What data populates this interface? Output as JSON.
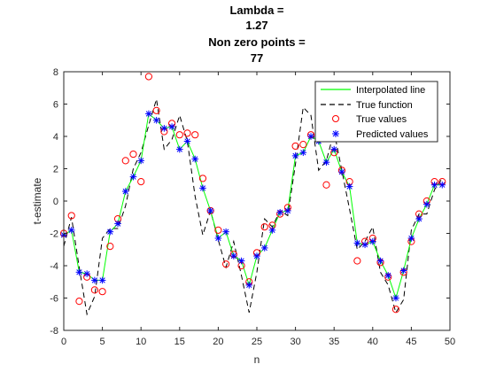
{
  "chart_data": {
    "type": "line",
    "title_lines": [
      "Lambda =",
      "1.27",
      "Non zero points =",
      "77"
    ],
    "xlabel": "n",
    "ylabel": "t-estimate",
    "xlim": [
      0,
      50
    ],
    "ylim": [
      -8,
      8
    ],
    "xticks": [
      0,
      5,
      10,
      15,
      20,
      25,
      30,
      35,
      40,
      45,
      50
    ],
    "yticks": [
      -8,
      -6,
      -4,
      -2,
      0,
      2,
      4,
      6,
      8
    ],
    "grid": false,
    "legend_position": "top-right",
    "series": [
      {
        "name": "Interpolated line",
        "style": "solid-line",
        "color": "#00ff00",
        "x": [
          0,
          1,
          2,
          3,
          4,
          5,
          6,
          7,
          8,
          9,
          10,
          11,
          12,
          13,
          14,
          15,
          16,
          17,
          18,
          19,
          20,
          21,
          22,
          23,
          24,
          25,
          26,
          27,
          28,
          29,
          30,
          31,
          32,
          33,
          34,
          35,
          36,
          37,
          38,
          39,
          40,
          41,
          42,
          43,
          44,
          45,
          46,
          47,
          48,
          49
        ],
        "y": [
          -2.1,
          -1.8,
          -4.4,
          -4.5,
          -4.9,
          -4.9,
          -1.9,
          -1.4,
          0.6,
          1.5,
          2.5,
          5.4,
          5.0,
          4.5,
          4.6,
          3.2,
          3.7,
          2.6,
          0.8,
          -0.6,
          -2.3,
          -1.9,
          -3.4,
          -3.7,
          -5.2,
          -3.4,
          -2.9,
          -1.8,
          -0.7,
          -0.6,
          2.8,
          3.0,
          4.0,
          3.7,
          2.4,
          3.2,
          1.8,
          0.9,
          -2.6,
          -2.7,
          -2.5,
          -3.7,
          -4.6,
          -6.0,
          -4.3,
          -2.3,
          -1.1,
          -0.2,
          1.0,
          1.0
        ]
      },
      {
        "name": "True function",
        "style": "dashed-line",
        "color": "#000000",
        "x": [
          0,
          1,
          2,
          3,
          4,
          5,
          6,
          7,
          8,
          9,
          10,
          11,
          12,
          13,
          14,
          15,
          16,
          17,
          18,
          19,
          20,
          21,
          22,
          23,
          24,
          25,
          26,
          27,
          28,
          29,
          30,
          31,
          32,
          33,
          34,
          35,
          36,
          37,
          38,
          39,
          40,
          41,
          42,
          43,
          44,
          45,
          46,
          47,
          48,
          49
        ],
        "y": [
          -2.8,
          -1.0,
          -4.1,
          -7.0,
          -5.9,
          -2.3,
          -1.7,
          -1.7,
          -0.3,
          2.0,
          3.0,
          4.7,
          6.3,
          3.2,
          3.8,
          5.3,
          3.7,
          0.3,
          -2.1,
          -0.6,
          -2.4,
          -4.1,
          -2.5,
          -4.6,
          -6.9,
          -4.4,
          -1.1,
          -1.6,
          -0.6,
          -0.9,
          2.3,
          5.8,
          5.3,
          1.9,
          2.5,
          4.3,
          1.9,
          -0.5,
          -3.0,
          -2.5,
          -1.6,
          -4.4,
          -5.2,
          -6.9,
          -6.1,
          -1.8,
          -0.8,
          -0.8,
          0.7,
          1.4
        ]
      },
      {
        "name": "True values",
        "style": "red-circle-markers",
        "color": "#ff0000",
        "x": [
          0,
          1,
          2,
          3,
          4,
          5,
          6,
          7,
          8,
          9,
          10,
          11,
          12,
          13,
          14,
          15,
          16,
          17,
          18,
          19,
          20,
          21,
          22,
          23,
          24,
          25,
          26,
          27,
          28,
          29,
          30,
          31,
          32,
          33,
          34,
          35,
          36,
          37,
          38,
          39,
          40,
          41,
          42,
          43,
          44,
          45,
          46,
          47,
          48,
          49
        ],
        "y": [
          -2.0,
          -0.9,
          -6.2,
          -4.7,
          -5.5,
          -5.6,
          -2.8,
          -1.1,
          2.5,
          2.9,
          1.2,
          7.7,
          5.6,
          4.3,
          4.8,
          4.1,
          4.2,
          4.1,
          1.4,
          -0.6,
          -1.8,
          -3.9,
          -3.3,
          -4.0,
          -5.0,
          -3.2,
          -1.6,
          -1.5,
          -0.8,
          -0.4,
          3.4,
          3.5,
          4.1,
          4.4,
          1.0,
          3.0,
          1.9,
          1.2,
          -3.7,
          -2.5,
          -2.3,
          -3.8,
          -4.7,
          -6.7,
          -4.4,
          -2.5,
          -0.8,
          0.0,
          1.2,
          1.2
        ]
      },
      {
        "name": "Predicted values",
        "style": "blue-star-markers",
        "color": "#0000ff",
        "x": [
          0,
          1,
          2,
          3,
          4,
          5,
          6,
          7,
          8,
          9,
          10,
          11,
          12,
          13,
          14,
          15,
          16,
          17,
          18,
          19,
          20,
          21,
          22,
          23,
          24,
          25,
          26,
          27,
          28,
          29,
          30,
          31,
          32,
          33,
          34,
          35,
          36,
          37,
          38,
          39,
          40,
          41,
          42,
          43,
          44,
          45,
          46,
          47,
          48,
          49
        ],
        "y": [
          -2.1,
          -1.8,
          -4.4,
          -4.5,
          -4.9,
          -4.9,
          -1.9,
          -1.4,
          0.6,
          1.5,
          2.5,
          5.4,
          5.0,
          4.5,
          4.6,
          3.2,
          3.7,
          2.6,
          0.8,
          -0.6,
          -2.3,
          -1.9,
          -3.4,
          -3.7,
          -5.2,
          -3.4,
          -2.9,
          -1.8,
          -0.7,
          -0.6,
          2.8,
          3.0,
          4.0,
          3.7,
          2.4,
          3.2,
          1.8,
          0.9,
          -2.6,
          -2.7,
          -2.5,
          -3.7,
          -4.6,
          -6.0,
          -4.3,
          -2.3,
          -1.1,
          -0.2,
          1.0,
          1.0
        ]
      }
    ]
  }
}
